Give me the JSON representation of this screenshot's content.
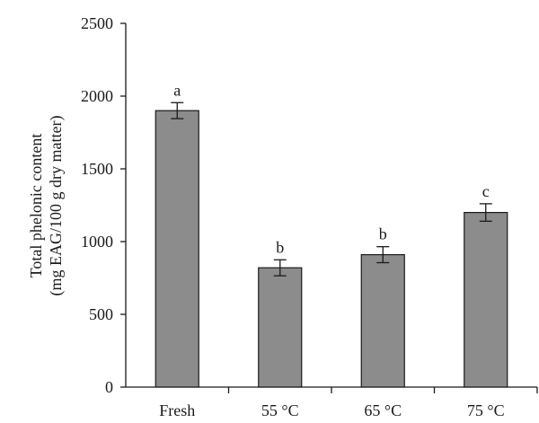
{
  "chart_data": {
    "type": "bar",
    "categories": [
      "Fresh",
      "55 °C",
      "65 °C",
      "75 °C"
    ],
    "values": [
      1900,
      820,
      910,
      1200
    ],
    "errors": [
      55,
      55,
      55,
      60
    ],
    "significance": [
      "a",
      "b",
      "b",
      "c"
    ],
    "ylabel_line1": "Total phelonic content",
    "ylabel_line2": "(mg EAG/100 g dry matter)",
    "xlabel": "",
    "ylim": [
      0,
      2500
    ],
    "yticks": [
      0,
      500,
      1000,
      1500,
      2000,
      2500
    ],
    "grid": false,
    "colors": {
      "bar_fill": "#8c8c8c",
      "bar_stroke": "#1a1a1a",
      "axis": "#1a1a1a"
    }
  }
}
